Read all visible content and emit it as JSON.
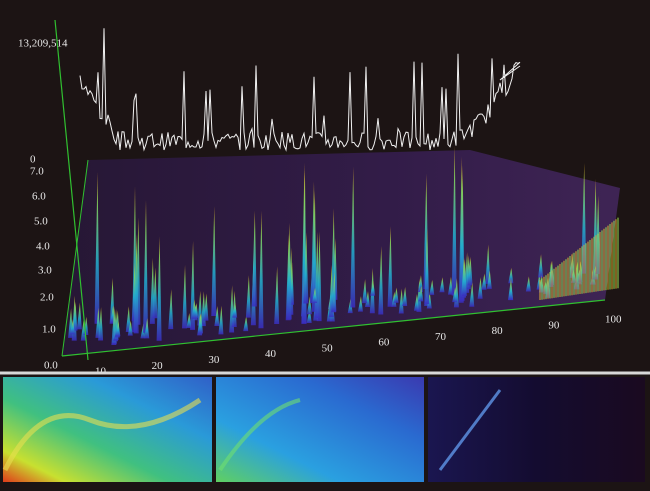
{
  "readout": "13,209,514",
  "vertical_axis": {
    "top_label": "0",
    "labels": [
      "7.0",
      "6.0",
      "5.0",
      "4.0",
      "3.0",
      "2.0",
      "1.0",
      "0.0"
    ]
  },
  "horizontal_axis": {
    "labels": [
      "10",
      "20",
      "30",
      "40",
      "50",
      "60",
      "70",
      "80",
      "90",
      "100"
    ]
  }
}
